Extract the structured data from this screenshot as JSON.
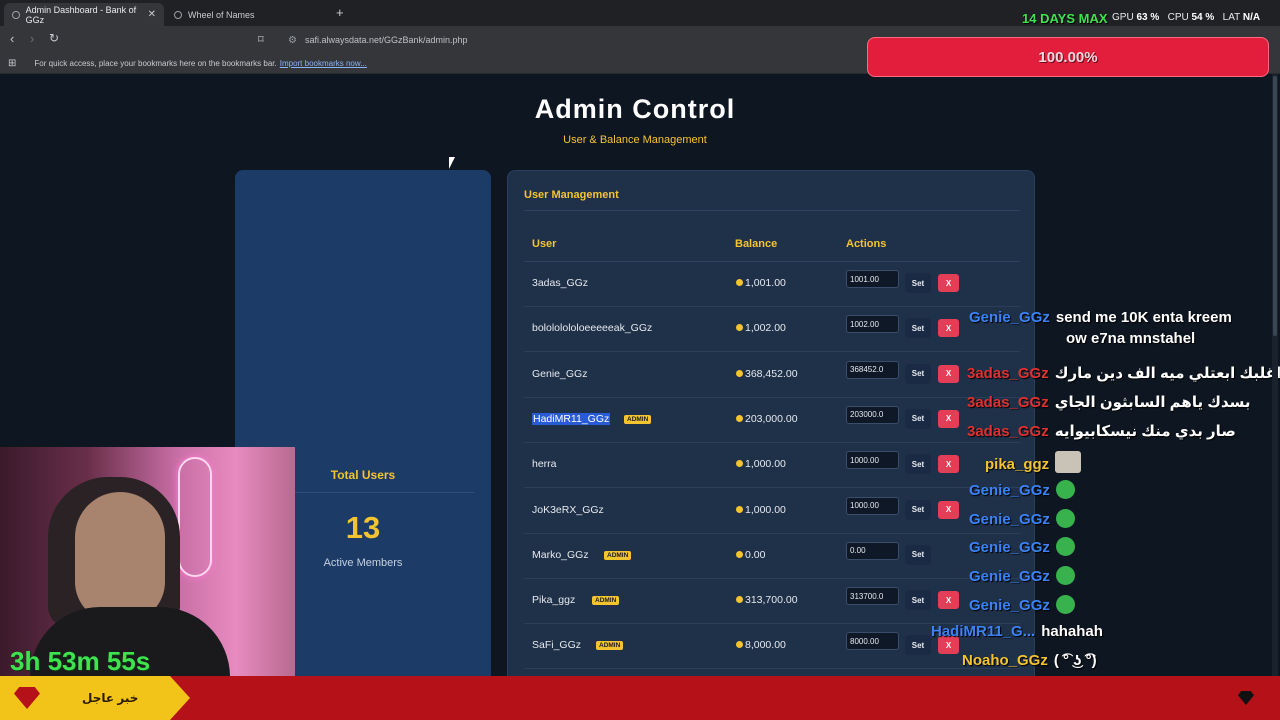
{
  "browser": {
    "tabs": [
      {
        "title": "Admin Dashboard - Bank of GGz",
        "active": true
      },
      {
        "title": "Wheel of Names",
        "active": false
      }
    ],
    "url": "safi.alwaysdata.net/GGzBank/admin.php",
    "bookmarks_hint": "For quick access, place your bookmarks here on the bookmarks bar.",
    "bookmarks_link": "Import bookmarks now..."
  },
  "overlay": {
    "days_max": "14 DAYS MAX",
    "gpu_label": "GPU",
    "gpu_value": "63",
    "cpu_label": "CPU",
    "cpu_value": "54",
    "lat_label": "LAT",
    "lat_value": "N/A",
    "progress_text": "100.00%",
    "progress": 1.0,
    "timer": "3h 53m 55s"
  },
  "page": {
    "title": "Admin Control",
    "subtitle": "User & Balance Management"
  },
  "stats_card": {
    "title": "Total Users",
    "count": "13",
    "caption": "Active Members"
  },
  "user_management": {
    "title": "User Management",
    "columns": {
      "user": "User",
      "balance": "Balance",
      "actions": "Actions"
    },
    "set_label": "Set",
    "delete_label": "X",
    "admin_label": "ADMIN",
    "rows": [
      {
        "user": "3adas_GGz",
        "admin": false,
        "balance": "1,001.00",
        "input": "1001.00",
        "deletable": true
      },
      {
        "user": "bolololololoeeeeeak_GGz",
        "admin": false,
        "balance": "1,002.00",
        "input": "1002.00",
        "deletable": true
      },
      {
        "user": "Genie_GGz",
        "admin": false,
        "balance": "368,452.00",
        "input": "368452.0",
        "deletable": true
      },
      {
        "user": "HadiMR11_GGz",
        "admin": true,
        "selected": true,
        "balance": "203,000.00",
        "input": "203000.0",
        "deletable": true
      },
      {
        "user": "herra",
        "admin": false,
        "balance": "1,000.00",
        "input": "1000.00",
        "deletable": true
      },
      {
        "user": "JoK3eRX_GGz",
        "admin": false,
        "balance": "1,000.00",
        "input": "1000.00",
        "deletable": true
      },
      {
        "user": "Marko_GGz",
        "admin": true,
        "balance": "0.00",
        "input": "0.00",
        "deletable": false
      },
      {
        "user": "Pika_ggz",
        "admin": true,
        "balance": "313,700.00",
        "input": "313700.0",
        "deletable": true
      },
      {
        "user": "SaFi_GGz",
        "admin": true,
        "balance": "8,000.00",
        "input": "8000.00",
        "deletable": true
      }
    ]
  },
  "chat": [
    {
      "name": "Genie_GGz",
      "color": "#3b82f6",
      "msg": "send me 10K enta kreem",
      "msg2": "ow e7na mnstahel"
    },
    {
      "name": "3adas_GGz",
      "color": "#e03131",
      "msg": "اغلبك ابعتلي ميه الف دين مارك"
    },
    {
      "name": "3adas_GGz",
      "color": "#e03131",
      "msg": "بسدك ياهم السابثون الجاي"
    },
    {
      "name": "3adas_GGz",
      "color": "#e03131",
      "msg": "صار بدي منك نيسكابيوايه"
    },
    {
      "name": "pika_ggz",
      "color": "#f4c430",
      "msg": ""
    },
    {
      "name": "Genie_GGz",
      "color": "#3b82f6",
      "msg": ""
    },
    {
      "name": "Genie_GGz",
      "color": "#3b82f6",
      "msg": ""
    },
    {
      "name": "Genie_GGz",
      "color": "#3b82f6",
      "msg": ""
    },
    {
      "name": "Genie_GGz",
      "color": "#3b82f6",
      "msg": ""
    },
    {
      "name": "Genie_GGz",
      "color": "#3b82f6",
      "msg": ""
    },
    {
      "name": "HadiMR11_G...",
      "color": "#3b82f6",
      "msg": "hahahah"
    },
    {
      "name": "Noaho_GGz",
      "color": "#f4c430",
      "msg": "( ͡° ͜ʖ ͡°)"
    }
  ],
  "ticker": {
    "label": "خبر عاجل"
  },
  "icons": {
    "back": "arrow-left-icon",
    "forward": "arrow-right-icon",
    "reload": "reload-icon",
    "bookmark": "bookmark-icon",
    "apps": "apps-grid-icon",
    "coin": "coin-icon"
  }
}
